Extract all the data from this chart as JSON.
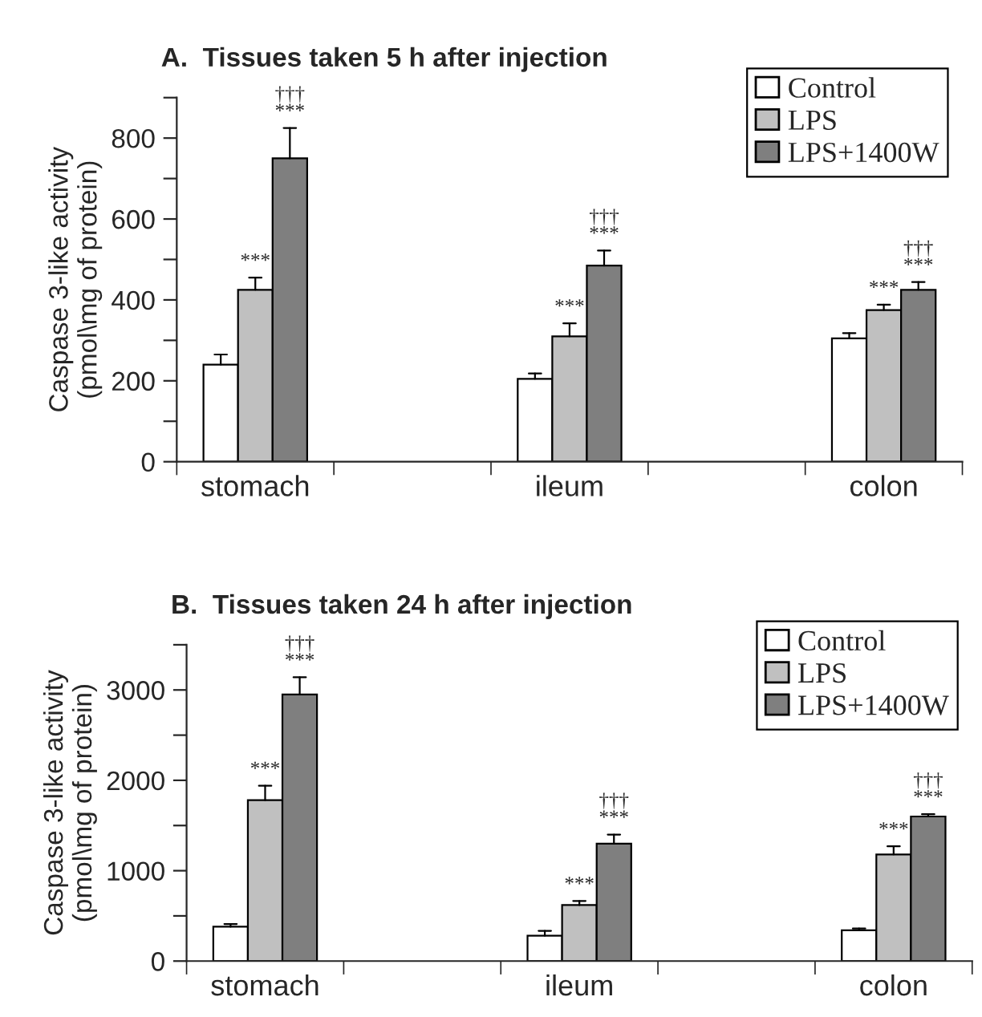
{
  "chart_data": [
    {
      "type": "bar",
      "title": "A.  Tissues taken 5 h after injection",
      "ylabel": "Caspase 3-like activity\n(pmol\\mg of protein)",
      "categories": [
        "stomach",
        null,
        "ileum",
        null,
        "colon"
      ],
      "ylim": [
        0,
        900
      ],
      "yticks": [
        0,
        {
          "value": 100,
          "label": null
        },
        200,
        {
          "value": 300,
          "label": null
        },
        400,
        {
          "value": 500,
          "label": null
        },
        600,
        {
          "value": 700,
          "label": null
        },
        800,
        {
          "value": 900,
          "label": null
        }
      ],
      "legend": "top right",
      "grid": false,
      "series": [
        {
          "name": "Control",
          "color": "#ffffff",
          "values": [
            240,
            null,
            205,
            null,
            305
          ],
          "errors": [
            [
              240,
              265
            ],
            null,
            [
              205,
              218
            ],
            null,
            [
              305,
              318
            ]
          ]
        },
        {
          "name": "LPS",
          "color": "#c0c0c0",
          "values": [
            425,
            null,
            310,
            null,
            375
          ],
          "errors": [
            [
              425,
              455
            ],
            null,
            [
              310,
              342
            ],
            null,
            [
              375,
              388
            ]
          ],
          "value_labels": [
            "***",
            null,
            "***",
            null,
            "***"
          ]
        },
        {
          "name": "LPS+1400W",
          "color": "#7f7f7f",
          "values": [
            750,
            null,
            485,
            null,
            425
          ],
          "errors": [
            [
              750,
              825
            ],
            null,
            [
              485,
              522
            ],
            null,
            [
              425,
              444
            ]
          ],
          "value_labels": [
            "†††\n***",
            null,
            "†††\n***",
            null,
            "†††\n***"
          ]
        }
      ]
    },
    {
      "type": "bar",
      "title": "B.  Tissues taken 24 h after injection",
      "ylabel": "Caspase 3-like activity\n(pmol\\mg of protein)",
      "categories": [
        "stomach",
        null,
        "ileum",
        null,
        "colon"
      ],
      "ylim": [
        0,
        3500
      ],
      "yticks": [
        0,
        {
          "value": 500,
          "label": null
        },
        1000,
        {
          "value": 1500,
          "label": null
        },
        2000,
        {
          "value": 2500,
          "label": null
        },
        3000,
        {
          "value": 3500,
          "label": null
        }
      ],
      "legend": "top right",
      "grid": false,
      "series": [
        {
          "name": "Control",
          "color": "#ffffff",
          "values": [
            380,
            null,
            280,
            null,
            340
          ],
          "errors": [
            [
              380,
              410
            ],
            null,
            [
              280,
              335
            ],
            null,
            [
              340,
              360
            ]
          ]
        },
        {
          "name": "LPS",
          "color": "#c0c0c0",
          "values": [
            1780,
            null,
            620,
            null,
            1180
          ],
          "errors": [
            [
              1780,
              1940
            ],
            null,
            [
              620,
              665
            ],
            null,
            [
              1180,
              1270
            ]
          ],
          "value_labels": [
            "***",
            null,
            "***",
            null,
            "***"
          ]
        },
        {
          "name": "LPS+1400W",
          "color": "#7f7f7f",
          "values": [
            2950,
            null,
            1300,
            null,
            1600
          ],
          "errors": [
            [
              2950,
              3140
            ],
            null,
            [
              1300,
              1400
            ],
            null,
            [
              1600,
              1625
            ]
          ],
          "value_labels": [
            "†††\n***",
            null,
            "†††\n***",
            null,
            "†††\n***"
          ]
        }
      ]
    }
  ]
}
